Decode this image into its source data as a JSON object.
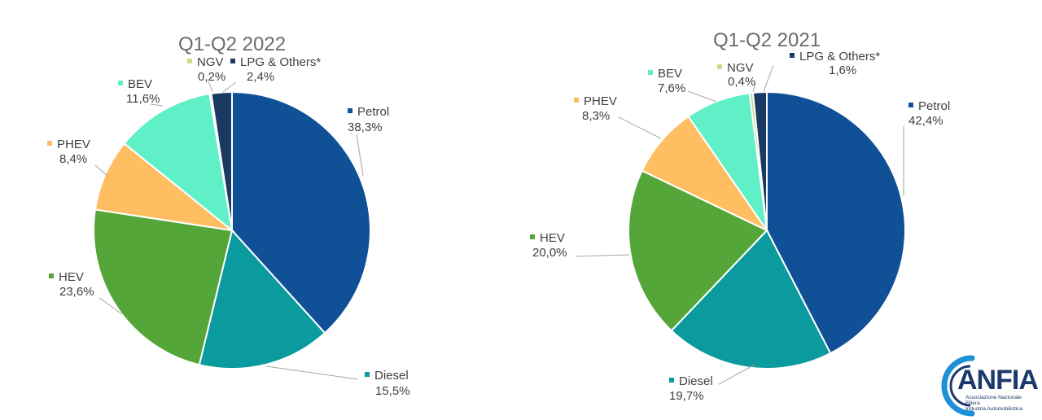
{
  "chart_data": [
    {
      "type": "pie",
      "title": "Q1-Q2 2022",
      "start_angle_deg": 0,
      "direction": "clockwise",
      "slices": [
        {
          "label": "Petrol",
          "value": 38.3,
          "value_label": "38,3%",
          "color": "#0f5096"
        },
        {
          "label": "Diesel",
          "value": 15.5,
          "value_label": "15,5%",
          "color": "#0b9a9d"
        },
        {
          "label": "HEV",
          "value": 23.6,
          "value_label": "23,6%",
          "color": "#55a638"
        },
        {
          "label": "PHEV",
          "value": 8.4,
          "value_label": "8,4%",
          "color": "#ffbe61"
        },
        {
          "label": "BEV",
          "value": 11.6,
          "value_label": "11,6%",
          "color": "#5ff0c8"
        },
        {
          "label": "NGV",
          "value": 0.2,
          "value_label": "0,2%",
          "color": "#c8dc8c"
        },
        {
          "label": "LPG & Others*",
          "value": 2.4,
          "value_label": "2,4%",
          "color": "#1a3a64"
        }
      ]
    },
    {
      "type": "pie",
      "title": "Q1-Q2 2021",
      "start_angle_deg": 0,
      "direction": "clockwise",
      "slices": [
        {
          "label": "Petrol",
          "value": 42.4,
          "value_label": "42,4%",
          "color": "#0f5096"
        },
        {
          "label": "Diesel",
          "value": 19.7,
          "value_label": "19,7%",
          "color": "#0b9a9d"
        },
        {
          "label": "HEV",
          "value": 20.0,
          "value_label": "20,0%",
          "color": "#55a638"
        },
        {
          "label": "PHEV",
          "value": 8.3,
          "value_label": "8,3%",
          "color": "#ffbe61"
        },
        {
          "label": "BEV",
          "value": 7.6,
          "value_label": "7,6%",
          "color": "#5ff0c8"
        },
        {
          "label": "NGV",
          "value": 0.4,
          "value_label": "0,4%",
          "color": "#c8dc8c"
        },
        {
          "label": "LPG & Others*",
          "value": 1.6,
          "value_label": "1,6%",
          "color": "#1a3a64"
        }
      ]
    }
  ],
  "logo": {
    "name": "ANFIA",
    "subtitle_lines": [
      "Associazione Nazionale",
      "Filiera",
      "Industria Automobilistica"
    ],
    "color": "#1b3a6b",
    "accent": "#1e90d6"
  }
}
